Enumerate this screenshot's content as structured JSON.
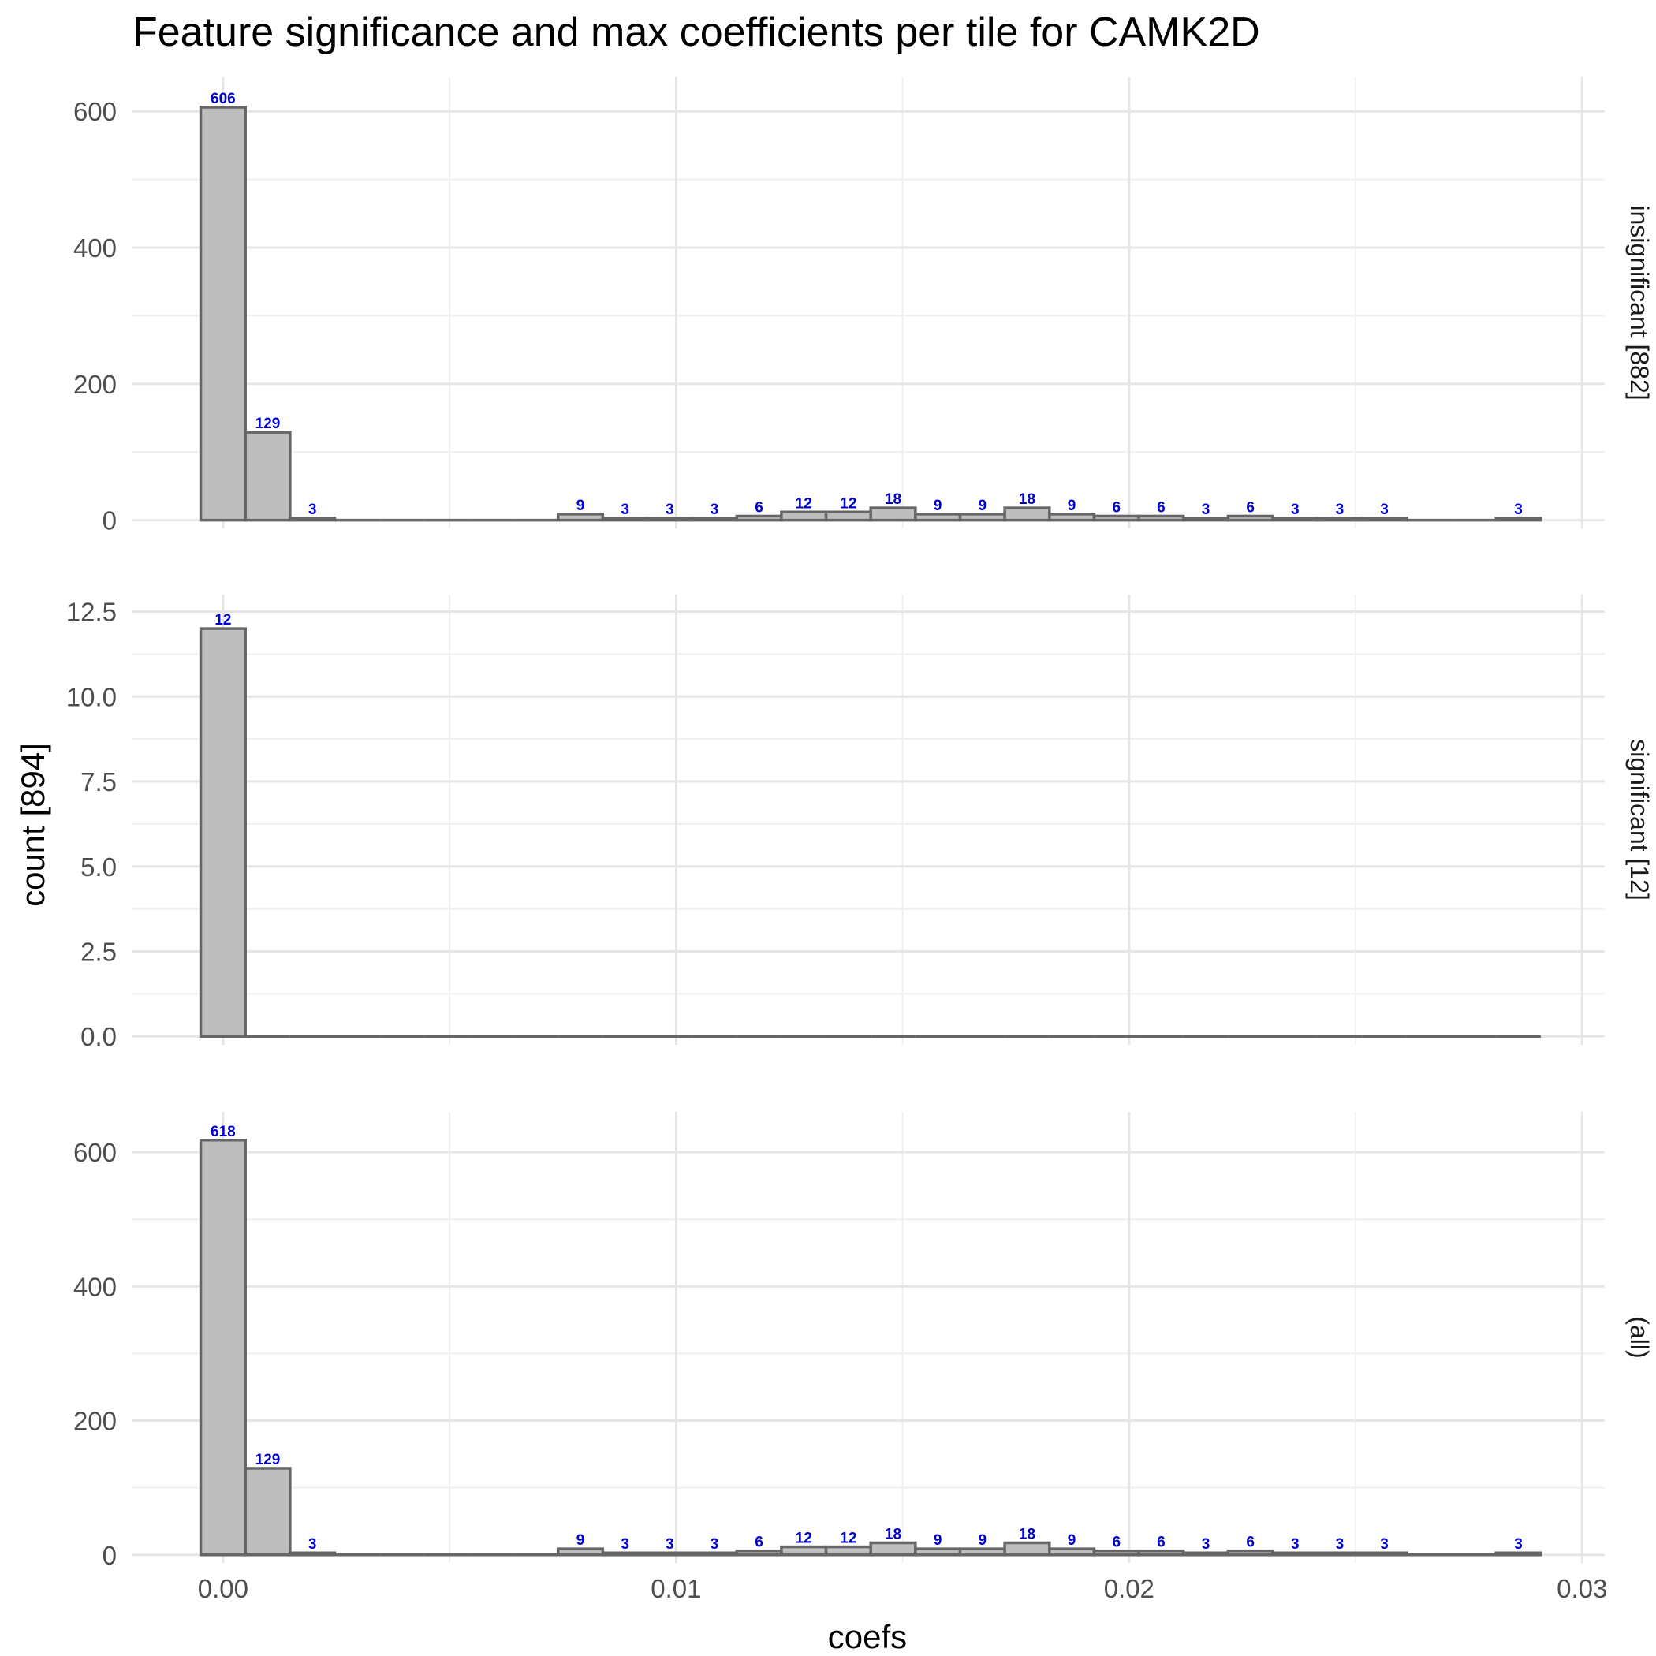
{
  "chart_data": {
    "type": "bar",
    "title": "Feature significance and max coefficients per tile for CAMK2D",
    "xlabel": "coefs",
    "ylabel": "count [894]",
    "xlim": [
      -0.002,
      0.0305
    ],
    "x_ticks": [
      "0.00",
      "0.01",
      "0.02",
      "0.03"
    ],
    "x_tick_values": [
      0,
      0.01,
      0.02,
      0.03
    ],
    "bin_width": 0.000986,
    "bin_start": -0.000493,
    "grid": true,
    "bar_fill": "#bebebe",
    "bar_stroke": "#666666",
    "label_color": "#0000cc",
    "panels": [
      {
        "strip": "insignificant [882]",
        "ylim": [
          -12,
          650
        ],
        "y_ticks": [
          "0",
          "200",
          "400",
          "600"
        ],
        "y_tick_values": [
          0,
          200,
          400,
          600
        ],
        "values": [
          606,
          129,
          3,
          0,
          0,
          0,
          0,
          0,
          9,
          3,
          3,
          3,
          6,
          12,
          12,
          18,
          9,
          9,
          18,
          9,
          6,
          6,
          3,
          6,
          3,
          3,
          3,
          0,
          0,
          3
        ]
      },
      {
        "strip": "significant [12]",
        "ylim": [
          -0.25,
          13.0
        ],
        "y_ticks": [
          "0.0",
          "2.5",
          "5.0",
          "7.5",
          "10.0",
          "12.5"
        ],
        "y_tick_values": [
          0,
          2.5,
          5,
          7.5,
          10,
          12.5
        ],
        "values": [
          12,
          0,
          0,
          0,
          0,
          0,
          0,
          0,
          0,
          0,
          0,
          0,
          0,
          0,
          0,
          0,
          0,
          0,
          0,
          0,
          0,
          0,
          0,
          0,
          0,
          0,
          0,
          0,
          0,
          0
        ]
      },
      {
        "strip": "(all)",
        "ylim": [
          -12,
          660
        ],
        "y_ticks": [
          "0",
          "200",
          "400",
          "600"
        ],
        "y_tick_values": [
          0,
          200,
          400,
          600
        ],
        "values": [
          618,
          129,
          3,
          0,
          0,
          0,
          0,
          0,
          9,
          3,
          3,
          3,
          6,
          12,
          12,
          18,
          9,
          9,
          18,
          9,
          6,
          6,
          3,
          6,
          3,
          3,
          3,
          0,
          0,
          3
        ]
      }
    ]
  }
}
